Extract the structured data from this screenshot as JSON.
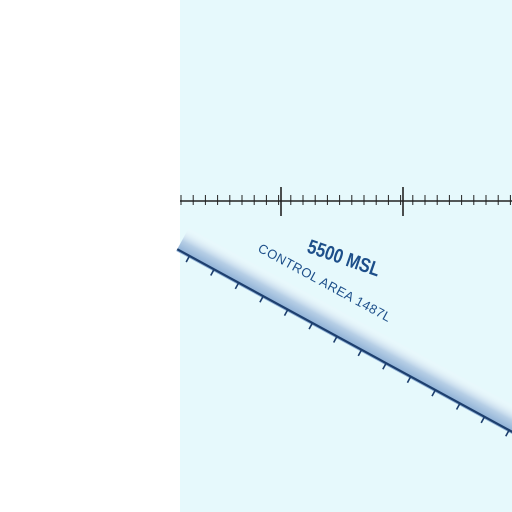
{
  "map": {
    "colors": {
      "background": "#e6f9fc",
      "margin": "#ffffff",
      "label": "#1d4f8a",
      "airway_band": "#a8c6e2",
      "airway_edge": "#1d3f6e",
      "tick_line": "#222222"
    },
    "altitude_label": "5500 MSL",
    "area_label": "CONTROL AREA 1487L"
  }
}
